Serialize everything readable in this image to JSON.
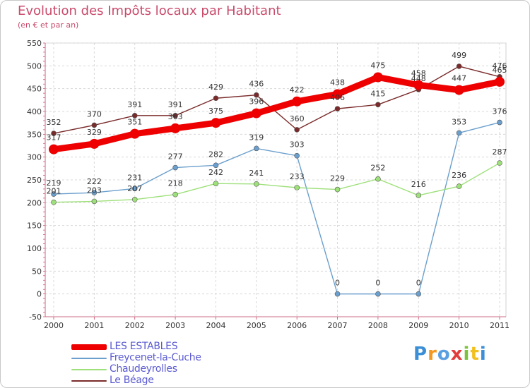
{
  "chart_data": {
    "type": "line",
    "title": "Evolution des Impôts locaux par Habitant",
    "subtitle": "(en € et par an)",
    "x": [
      2000,
      2001,
      2002,
      2003,
      2004,
      2005,
      2006,
      2007,
      2008,
      2009,
      2010,
      2011
    ],
    "ylim": [
      -50,
      550
    ],
    "yticks": [
      -50,
      0,
      50,
      100,
      150,
      200,
      250,
      300,
      350,
      400,
      450,
      500,
      550
    ],
    "grid": true,
    "legend_position": "bottom-left",
    "series": [
      {
        "name": "LES ESTABLES",
        "color": "#ee0000",
        "values": [
          317,
          329,
          351,
          363,
          375,
          396,
          422,
          438,
          475,
          458,
          447,
          465
        ]
      },
      {
        "name": "Freycenet-la-Cuche",
        "color": "#6b9fcd",
        "values": [
          219,
          222,
          231,
          277,
          282,
          319,
          303,
          0,
          0,
          0,
          353,
          376
        ]
      },
      {
        "name": "Chaudeyrolles",
        "color": "#9ee07a",
        "values": [
          201,
          203,
          207,
          218,
          242,
          241,
          233,
          229,
          252,
          216,
          236,
          287
        ]
      },
      {
        "name": "Le Béage",
        "color": "#7a2a2a",
        "values": [
          352,
          370,
          391,
          391,
          429,
          436,
          360,
          406,
          415,
          448,
          499,
          476
        ]
      }
    ]
  },
  "brand": {
    "text": "Proxiti"
  }
}
